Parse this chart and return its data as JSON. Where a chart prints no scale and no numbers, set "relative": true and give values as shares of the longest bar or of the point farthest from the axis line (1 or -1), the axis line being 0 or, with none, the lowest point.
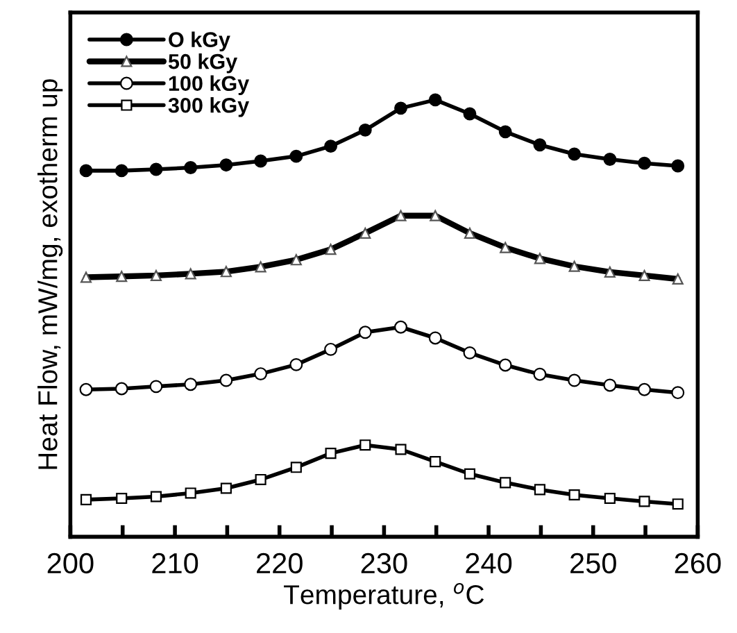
{
  "chart_data": {
    "type": "line",
    "relative": true,
    "xlabel": "Temperature, $^{o}$C",
    "ylabel": "Heat Flow, mW/mg, exotherm up",
    "x": [
      201.5,
      204.9,
      208.2,
      211.5,
      214.9,
      218.2,
      221.6,
      224.9,
      228.2,
      231.6,
      234.9,
      238.2,
      241.6,
      244.9,
      248.2,
      251.6,
      254.9,
      258.1
    ],
    "xlim": [
      200,
      260
    ],
    "xticks": [
      200,
      {
        "value": 205,
        "label": null
      },
      210,
      {
        "value": 215,
        "label": null
      },
      220,
      {
        "value": 225,
        "label": null
      },
      230,
      {
        "value": 235,
        "label": null
      },
      240,
      {
        "value": 245,
        "label": null
      },
      250,
      {
        "value": 255,
        "label": null
      },
      260
    ],
    "tick_labels": "x",
    "legend": "top left",
    "grid": false,
    "line_style": "solid",
    "series": [
      {
        "name": "O kGy",
        "color": "#000000",
        "marker": "circle",
        "values": [
          0.838,
          0.838,
          0.841,
          0.845,
          0.851,
          0.86,
          0.871,
          0.894,
          0.931,
          0.981,
          1.0,
          0.968,
          0.927,
          0.897,
          0.876,
          0.864,
          0.855,
          0.849
        ]
      },
      {
        "name": "50 kGy",
        "color": "#000000",
        "marker": "triangle",
        "values": [
          0.594,
          0.596,
          0.598,
          0.602,
          0.607,
          0.618,
          0.634,
          0.658,
          0.695,
          0.735,
          0.735,
          0.695,
          0.662,
          0.637,
          0.619,
          0.606,
          0.598,
          0.59
        ]
      },
      {
        "name": "100 kGy",
        "color": "#000000",
        "marker": "circle",
        "values": [
          0.337,
          0.339,
          0.344,
          0.349,
          0.358,
          0.373,
          0.394,
          0.429,
          0.468,
          0.48,
          0.455,
          0.421,
          0.393,
          0.372,
          0.358,
          0.347,
          0.337,
          0.33
        ]
      },
      {
        "name": "300 kGy",
        "color": "#000000",
        "marker": "square",
        "values": [
          0.085,
          0.088,
          0.092,
          0.1,
          0.111,
          0.131,
          0.159,
          0.191,
          0.21,
          0.2,
          0.172,
          0.144,
          0.124,
          0.108,
          0.096,
          0.088,
          0.081,
          0.075
        ]
      }
    ]
  }
}
